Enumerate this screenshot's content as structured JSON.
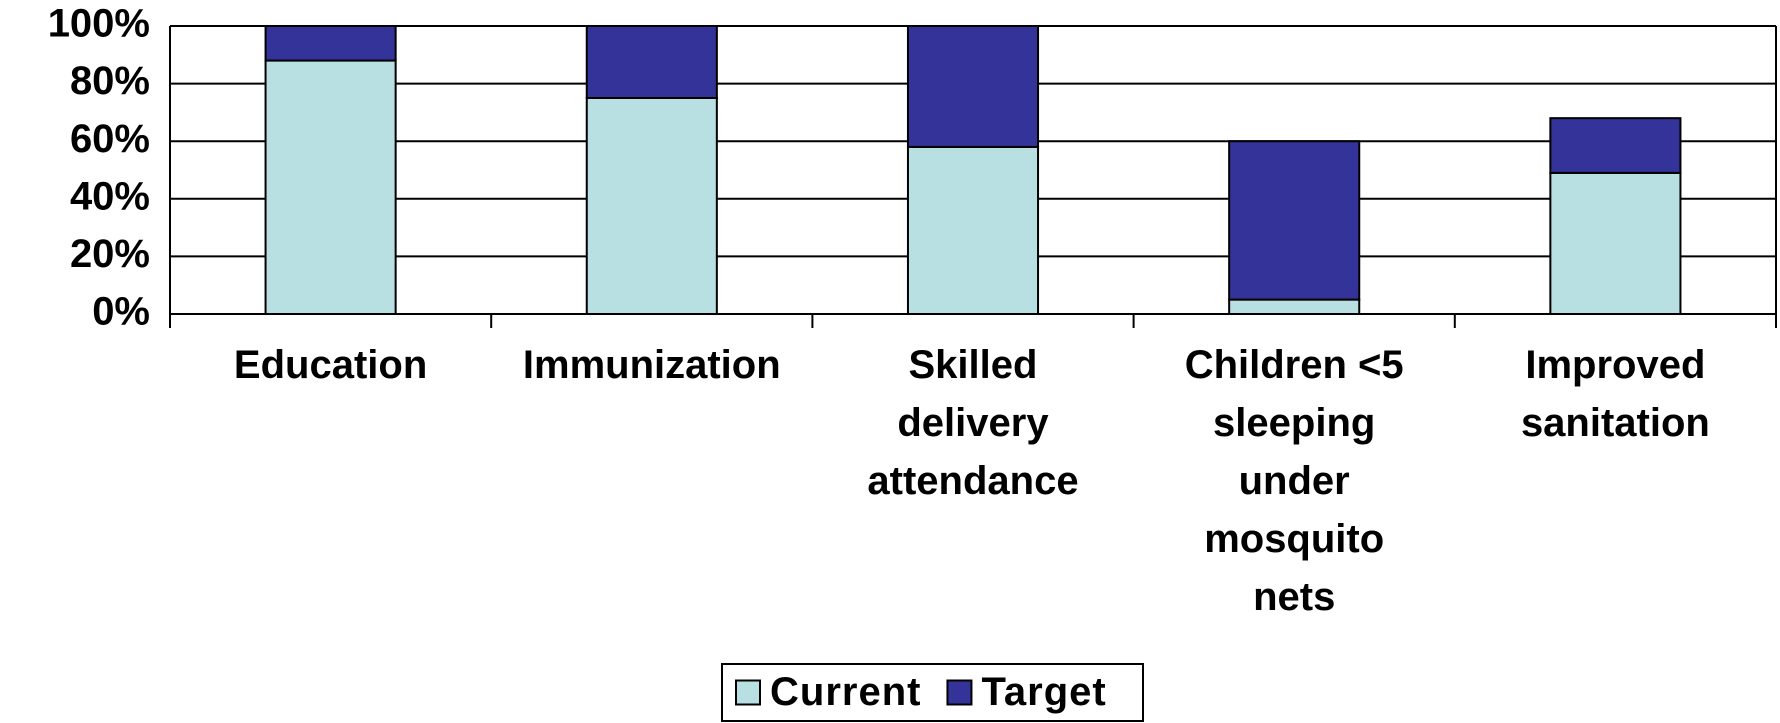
{
  "chart_data": {
    "type": "stacked_bar",
    "categories": [
      "Education",
      "Immunization",
      "Skilled\ndelivery\nattendance",
      "Children <5\nsleeping\nunder\nmosquito\nnets",
      "Improved\nsanitation"
    ],
    "series": [
      {
        "name": "Current",
        "color": "#b8e0e3",
        "values": [
          88,
          75,
          58,
          5,
          49
        ]
      },
      {
        "name": "Target",
        "color": "#333399",
        "values": [
          12,
          25,
          42,
          55,
          19
        ]
      }
    ],
    "ylim": [
      0,
      100
    ],
    "yticks": [
      {
        "value": 0,
        "label": "0%"
      },
      {
        "value": 20,
        "label": "20%"
      },
      {
        "value": 40,
        "label": "40%"
      },
      {
        "value": 60,
        "label": "60%"
      },
      {
        "value": 80,
        "label": "80%"
      },
      {
        "value": 100,
        "label": "100%"
      }
    ],
    "grid": true,
    "legend": "bottom"
  }
}
